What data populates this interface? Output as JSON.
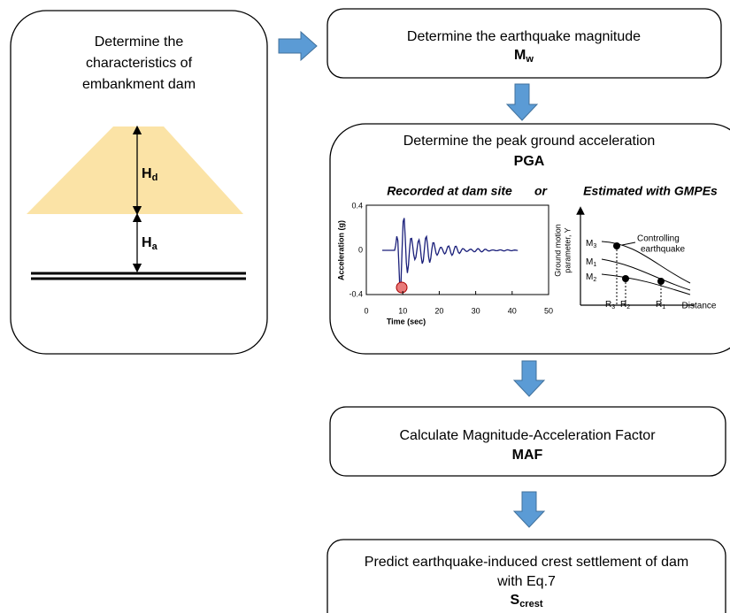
{
  "left_box": {
    "lines": [
      "Determine the",
      "characteristics of",
      "embankment dam"
    ],
    "dam_labels": [
      {
        "main": "H",
        "sub": "d"
      },
      {
        "main": "H",
        "sub": "a"
      }
    ]
  },
  "steps": [
    {
      "lines": [
        "Determine the earthquake magnitude"
      ],
      "symbol": {
        "main": "M",
        "sub": "w"
      }
    },
    {
      "lines": [
        "Determine the peak ground acceleration"
      ],
      "symbol": {
        "main": "PGA"
      }
    },
    {
      "lines": [
        "Calculate Magnitude-Acceleration Factor"
      ],
      "symbol": {
        "main": "MAF"
      }
    },
    {
      "lines": [
        "Predict earthquake-induced crest settlement of dam",
        "with Eq.7"
      ],
      "symbol": {
        "main": "S",
        "sub": "crest"
      }
    }
  ],
  "pga_panel": {
    "left_caption": "Recorded at dam site",
    "connector": "or",
    "right_caption": "Estimated with GMPEs",
    "record_chart": {
      "y_label": "Acceleration (g)",
      "x_label": "Time (sec)",
      "y_tick_labels": [
        "0.4",
        "0",
        "-0.4"
      ],
      "x_tick_labels": [
        "0",
        "10",
        "20",
        "30",
        "40",
        "50"
      ]
    },
    "gmpe_chart": {
      "y_label_lines": [
        "Ground motion",
        "parameter, Y"
      ],
      "x_label": "Distance",
      "annotation_lines": [
        "Controlling",
        "earthquake"
      ],
      "curve_labels": [
        {
          "main": "M",
          "sub": "3"
        },
        {
          "main": "M",
          "sub": "1"
        },
        {
          "main": "M",
          "sub": "2"
        }
      ],
      "distance_labels": [
        {
          "main": "R",
          "sub": "3"
        },
        {
          "main": "R",
          "sub": "2"
        },
        {
          "main": "R",
          "sub": "1"
        }
      ]
    }
  }
}
